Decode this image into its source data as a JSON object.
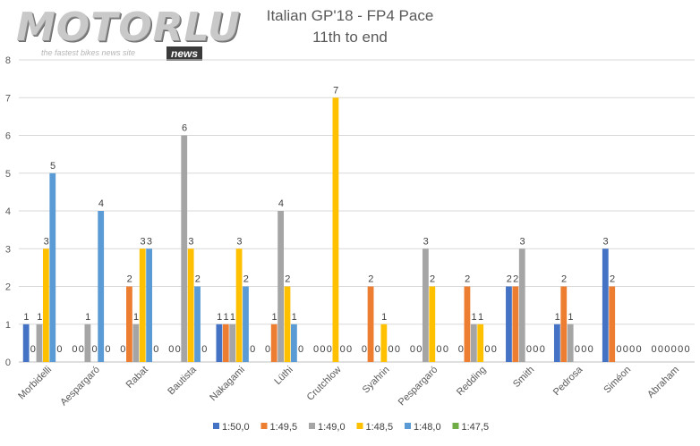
{
  "logo": {
    "text": "MOTORLU",
    "tagline": "the fastest bikes news site",
    "badge": "news"
  },
  "chart_data": {
    "type": "bar",
    "title": "Italian GP'18 - FP4 Pace",
    "subtitle": "11th to end",
    "xlabel": "",
    "ylabel": "",
    "ylim": [
      0,
      8
    ],
    "yticks": [
      0,
      1,
      2,
      3,
      4,
      5,
      6,
      7,
      8
    ],
    "grid": true,
    "legend_position": "bottom",
    "categories": [
      "Morbidelli",
      "Aespargaró",
      "Rabat",
      "Bautista",
      "Nakagami",
      "Lüthi",
      "Crutchlow",
      "Syahrin",
      "Pespargaró",
      "Redding",
      "Smith",
      "Pedrosa",
      "Siméon",
      "Abraham"
    ],
    "series": [
      {
        "name": "1:50,0",
        "color": "#4472c4",
        "values": [
          1,
          0,
          0,
          0,
          1,
          0,
          0,
          0,
          0,
          0,
          2,
          1,
          3,
          0
        ]
      },
      {
        "name": "1:49,5",
        "color": "#ed7d31",
        "values": [
          0,
          0,
          2,
          0,
          1,
          1,
          0,
          2,
          0,
          2,
          2,
          2,
          2,
          0
        ]
      },
      {
        "name": "1:49,0",
        "color": "#a5a5a5",
        "values": [
          1,
          1,
          1,
          6,
          1,
          4,
          0,
          0,
          3,
          1,
          3,
          1,
          0,
          0
        ]
      },
      {
        "name": "1:48,5",
        "color": "#ffc000",
        "values": [
          3,
          0,
          3,
          3,
          3,
          2,
          7,
          1,
          2,
          1,
          0,
          0,
          0,
          0
        ]
      },
      {
        "name": "1:48,0",
        "color": "#5b9bd5",
        "values": [
          5,
          4,
          3,
          2,
          2,
          1,
          0,
          0,
          0,
          0,
          0,
          0,
          0,
          0
        ]
      },
      {
        "name": "1:47,5",
        "color": "#70ad47",
        "values": [
          0,
          0,
          0,
          0,
          0,
          0,
          0,
          0,
          0,
          0,
          0,
          0,
          0,
          0
        ]
      }
    ]
  }
}
